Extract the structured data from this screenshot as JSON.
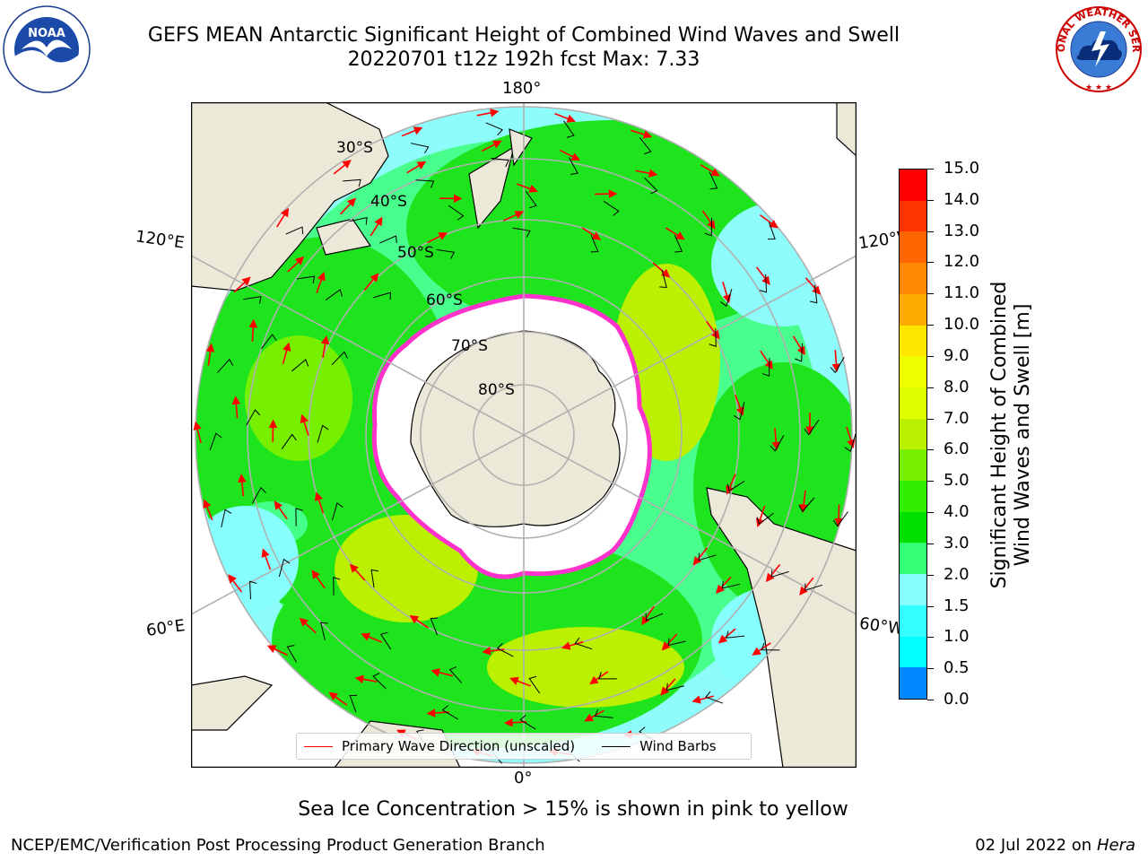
{
  "title": {
    "line1": "GEFS MEAN Antarctic Significant Height of Combined Wind Waves and Swell",
    "line2": "20220701 t12z 192h fcst   Max: 7.33"
  },
  "logos": {
    "left": {
      "name": "noaa-logo",
      "text": "NOAA",
      "ring_text": "NATIONAL OCEANIC AND ATMOSPHERIC ADMINISTRATION · U.S. DEPARTMENT OF COMMERCE"
    },
    "right": {
      "name": "national-weather-service-logo",
      "ring_text": "NATIONAL WEATHER SERVICE"
    }
  },
  "map": {
    "projection": "south-polar-stereographic",
    "longitude_labels": {
      "top": "180°",
      "bottom": "0°",
      "upper_left": "120°E",
      "lower_left": "60°E",
      "upper_right": "120°W",
      "lower_right": "60°W"
    },
    "latitude_labels": [
      "30°S",
      "40°S",
      "50°S",
      "60°S",
      "70°S",
      "80°S"
    ],
    "colors": {
      "land": "#ede9d8",
      "sea_ice": "#ffffff",
      "ice_edge": "#ff33cc",
      "arrow": "#ff0000",
      "barb": "#000000",
      "graticule": "#b0b0b0"
    }
  },
  "colorbar": {
    "label_line1": "Significant Height of Combined",
    "label_line2": "Wind Waves and Swell [m]",
    "ticks": [
      "15.0",
      "14.0",
      "13.0",
      "12.0",
      "11.0",
      "10.0",
      "9.0",
      "8.0",
      "7.0",
      "6.0",
      "5.0",
      "4.0",
      "3.0",
      "2.0",
      "1.5",
      "1.0",
      "0.5",
      "0.0"
    ],
    "colors_top_to_bottom": [
      "#ff0000",
      "#ff3300",
      "#ff6600",
      "#ff8800",
      "#ffaa00",
      "#ffe600",
      "#f0ff00",
      "#ddff00",
      "#bbf000",
      "#77f000",
      "#33ee00",
      "#00e000",
      "#33ff77",
      "#88ffff",
      "#33ffff",
      "#00ffff",
      "#0088ff",
      "#0044ff",
      "#0000ee"
    ]
  },
  "legend": {
    "items": [
      {
        "label": "Primary Wave Direction (unscaled)",
        "color": "#ff0000"
      },
      {
        "label": "Wind Barbs",
        "color": "#000000"
      }
    ]
  },
  "notes": {
    "sea_ice": "Sea Ice Concentration > 15% is shown in pink to yellow"
  },
  "footer": {
    "left": "NCEP/EMC/Verification Post Processing Product Generation Branch",
    "right_prefix": "02 Jul 2022 on ",
    "right_host": "Hera"
  }
}
